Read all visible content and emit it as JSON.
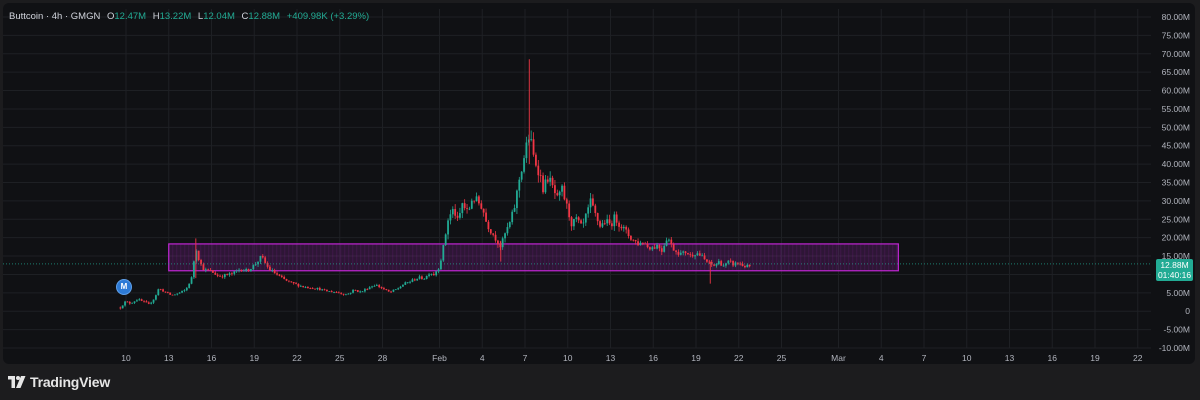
{
  "legend": {
    "symbol": "Buttcoin · 4h · GMGN",
    "open_label": "O",
    "open": "12.47M",
    "high_label": "H",
    "high": "13.22M",
    "low_label": "L",
    "low": "12.04M",
    "close_label": "C",
    "close": "12.88M",
    "change": "+409.98K (+3.29%)"
  },
  "price_badge": {
    "price": "12.88M",
    "countdown": "01:40:16"
  },
  "marker": {
    "label": "M"
  },
  "branding": {
    "logo_text": "TradingView"
  },
  "colors": {
    "up": "#22ab94",
    "down": "#f23645",
    "zone_border": "#c026d3",
    "zone_fill": "rgba(156, 39, 176, 0.22)",
    "grid": "#1e2024",
    "axis_text": "#b2b5be"
  },
  "chart_data": {
    "type": "candlestick",
    "title": "",
    "xlabel": "",
    "ylabel": "",
    "ylim": [
      -10,
      80
    ],
    "y_ticks": [
      "80.00M",
      "75.00M",
      "70.00M",
      "65.00M",
      "60.00M",
      "55.00M",
      "50.00M",
      "45.00M",
      "40.00M",
      "35.00M",
      "30.00M",
      "25.00M",
      "20.00M",
      "15.00M",
      "10.00M",
      "5.00M",
      "0",
      "-5.00M",
      "-10.00M"
    ],
    "x_ticks": [
      {
        "label": "10",
        "day": 10
      },
      {
        "label": "13",
        "day": 13
      },
      {
        "label": "16",
        "day": 16
      },
      {
        "label": "19",
        "day": 19
      },
      {
        "label": "22",
        "day": 22
      },
      {
        "label": "25",
        "day": 25
      },
      {
        "label": "28",
        "day": 28
      },
      {
        "label": "Feb",
        "day": 32
      },
      {
        "label": "4",
        "day": 35
      },
      {
        "label": "7",
        "day": 38
      },
      {
        "label": "10",
        "day": 41
      },
      {
        "label": "13",
        "day": 44
      },
      {
        "label": "16",
        "day": 47
      },
      {
        "label": "19",
        "day": 50
      },
      {
        "label": "22",
        "day": 53
      },
      {
        "label": "25",
        "day": 56
      },
      {
        "label": "Mar",
        "day": 60
      },
      {
        "label": "4",
        "day": 63
      },
      {
        "label": "7",
        "day": 66
      },
      {
        "label": "10",
        "day": 69
      },
      {
        "label": "13",
        "day": 72
      },
      {
        "label": "16",
        "day": 75
      },
      {
        "label": "19",
        "day": 78
      },
      {
        "label": "22",
        "day": 81
      }
    ],
    "last_price": 12.88,
    "zone": {
      "day_start": 13,
      "day_end": 64.2,
      "price_low": 11.0,
      "price_high": 18.3
    },
    "path": [
      [
        9.6,
        1
      ],
      [
        9.9,
        2.5
      ],
      [
        10.3,
        2.2
      ],
      [
        10.8,
        3.2
      ],
      [
        11.2,
        2.6
      ],
      [
        11.6,
        1.8
      ],
      [
        12,
        3.6
      ],
      [
        12.3,
        6.2
      ],
      [
        12.8,
        5.1
      ],
      [
        13.2,
        4.3
      ],
      [
        13.7,
        4.9
      ],
      [
        14.2,
        5.8
      ],
      [
        14.6,
        9
      ],
      [
        14.9,
        17.5
      ],
      [
        15.2,
        13
      ],
      [
        15.5,
        11.2
      ],
      [
        16,
        10.8
      ],
      [
        16.5,
        9.5
      ],
      [
        17,
        9.8
      ],
      [
        17.5,
        10.2
      ],
      [
        18,
        11.5
      ],
      [
        18.5,
        11
      ],
      [
        19,
        12.5
      ],
      [
        19.5,
        14.8
      ],
      [
        20,
        11.6
      ],
      [
        20.5,
        10.2
      ],
      [
        21,
        8.8
      ],
      [
        21.5,
        7.8
      ],
      [
        22,
        7.2
      ],
      [
        22.5,
        6.6
      ],
      [
        23,
        6.4
      ],
      [
        23.5,
        6.1
      ],
      [
        24,
        5.5
      ],
      [
        24.5,
        5.3
      ],
      [
        25,
        5
      ],
      [
        25.5,
        4.5
      ],
      [
        26,
        5.8
      ],
      [
        26.5,
        5.2
      ],
      [
        27,
        6.4
      ],
      [
        27.5,
        7.2
      ],
      [
        28,
        6.2
      ],
      [
        28.5,
        5.1
      ],
      [
        29,
        6
      ],
      [
        29.5,
        7.4
      ],
      [
        30,
        8.2
      ],
      [
        30.5,
        9.1
      ],
      [
        31,
        9
      ],
      [
        31.3,
        10.6
      ],
      [
        31.6,
        10
      ],
      [
        32,
        12.3
      ],
      [
        32.3,
        18
      ],
      [
        32.6,
        25
      ],
      [
        33,
        27.8
      ],
      [
        33.3,
        24
      ],
      [
        33.6,
        29.3
      ],
      [
        34,
        26.5
      ],
      [
        34.3,
        31
      ],
      [
        34.6,
        30
      ],
      [
        35,
        28.5
      ],
      [
        35.3,
        24
      ],
      [
        35.6,
        22
      ],
      [
        36,
        19.5
      ],
      [
        36.3,
        17.5
      ],
      [
        36.6,
        21
      ],
      [
        37,
        24.5
      ],
      [
        37.3,
        29
      ],
      [
        37.6,
        36
      ],
      [
        38,
        43
      ],
      [
        38.3,
        48
      ],
      [
        38.6,
        42
      ],
      [
        39,
        38
      ],
      [
        39.3,
        33
      ],
      [
        39.6,
        36.5
      ],
      [
        40,
        33
      ],
      [
        40.3,
        30
      ],
      [
        40.6,
        33
      ],
      [
        41,
        27.5
      ],
      [
        41.3,
        23.5
      ],
      [
        41.6,
        25
      ],
      [
        42,
        22.5
      ],
      [
        42.3,
        26
      ],
      [
        42.6,
        29.5
      ],
      [
        43,
        25.5
      ],
      [
        43.3,
        23
      ],
      [
        43.6,
        24.5
      ],
      [
        44,
        23.5
      ],
      [
        44.3,
        25.5
      ],
      [
        44.6,
        24
      ],
      [
        45,
        22
      ],
      [
        45.3,
        20.5
      ],
      [
        45.6,
        19.3
      ],
      [
        46,
        18.3
      ],
      [
        46.3,
        18.9
      ],
      [
        46.6,
        17.6
      ],
      [
        47,
        17.3
      ],
      [
        47.3,
        18
      ],
      [
        47.6,
        16.6
      ],
      [
        48,
        20.5
      ],
      [
        48.3,
        17.5
      ],
      [
        48.6,
        16.4
      ],
      [
        49,
        15.5
      ],
      [
        49.3,
        16.2
      ],
      [
        49.6,
        15.1
      ],
      [
        50,
        16
      ],
      [
        50.3,
        15.2
      ],
      [
        50.6,
        14
      ],
      [
        51,
        12.7
      ],
      [
        51.3,
        12.4
      ],
      [
        51.6,
        13.4
      ],
      [
        52,
        12.3
      ],
      [
        52.3,
        13.4
      ],
      [
        52.6,
        12.8
      ],
      [
        53,
        13.1
      ],
      [
        53.3,
        12.4
      ],
      [
        53.6,
        12.1
      ],
      [
        53.9,
        12.3
      ]
    ],
    "spikes": [
      {
        "day": 38.3,
        "high": 68.5,
        "low": 40
      },
      {
        "day": 14.9,
        "high": 19.8,
        "low": 9
      },
      {
        "day": 36.3,
        "high": 19,
        "low": 13.5
      },
      {
        "day": 51.0,
        "high": 13.5,
        "low": 7.5
      }
    ]
  }
}
